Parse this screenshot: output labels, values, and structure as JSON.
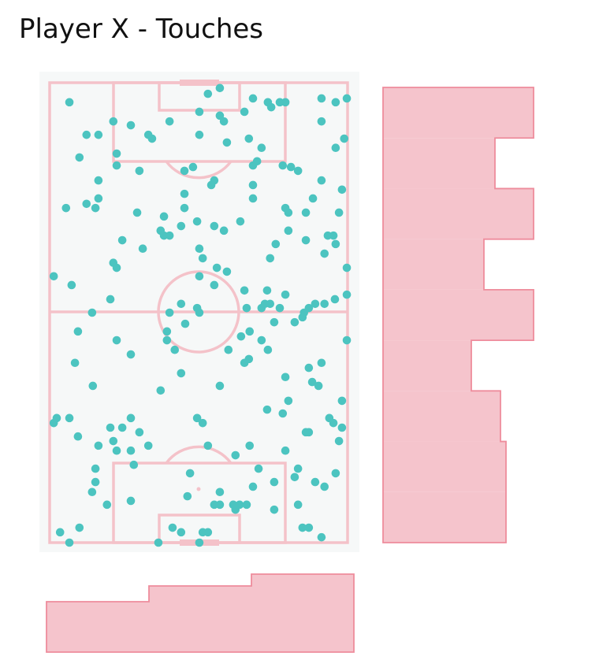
{
  "chart_data": {
    "type": "scatter",
    "title": "Player X - Touches",
    "pitch": {
      "width": 80,
      "length": 120,
      "orientation": "vertical",
      "background": "#f6f8f8",
      "line_color": "#f4c2c9"
    },
    "point_color": "#4cc4c0",
    "points_across_along": [
      [
        5.3,
        114.9
      ],
      [
        42.5,
        117.1
      ],
      [
        45.7,
        118.6
      ],
      [
        54.6,
        115.9
      ],
      [
        58.6,
        114.9
      ],
      [
        59.5,
        113.6
      ],
      [
        61.8,
        114.9
      ],
      [
        63.3,
        114.9
      ],
      [
        73.0,
        115.9
      ],
      [
        76.8,
        114.9
      ],
      [
        79.8,
        115.9
      ],
      [
        17.1,
        109.9
      ],
      [
        21.8,
        108.9
      ],
      [
        32.2,
        109.9
      ],
      [
        40.2,
        112.4
      ],
      [
        45.7,
        111.4
      ],
      [
        46.8,
        109.9
      ],
      [
        52.3,
        112.4
      ],
      [
        73.0,
        109.9
      ],
      [
        9.9,
        106.4
      ],
      [
        13.1,
        106.4
      ],
      [
        26.5,
        106.4
      ],
      [
        27.5,
        105.4
      ],
      [
        40.2,
        106.4
      ],
      [
        47.6,
        104.4
      ],
      [
        53.5,
        105.4
      ],
      [
        56.9,
        103.0
      ],
      [
        79.1,
        105.4
      ],
      [
        76.8,
        103.0
      ],
      [
        8.0,
        100.5
      ],
      [
        18.0,
        101.5
      ],
      [
        18.0,
        98.4
      ],
      [
        24.1,
        97.0
      ],
      [
        36.2,
        97.0
      ],
      [
        38.5,
        98.0
      ],
      [
        54.6,
        98.4
      ],
      [
        55.7,
        99.5
      ],
      [
        62.6,
        98.4
      ],
      [
        64.8,
        98.0
      ],
      [
        66.7,
        97.0
      ],
      [
        13.1,
        94.5
      ],
      [
        44.2,
        94.5
      ],
      [
        43.4,
        93.3
      ],
      [
        54.6,
        93.3
      ],
      [
        73.0,
        94.5
      ],
      [
        36.2,
        91.0
      ],
      [
        13.1,
        89.8
      ],
      [
        9.9,
        88.4
      ],
      [
        4.4,
        87.3
      ],
      [
        12.3,
        87.3
      ],
      [
        54.6,
        89.8
      ],
      [
        70.7,
        89.8
      ],
      [
        78.5,
        92.1
      ],
      [
        36.2,
        87.3
      ],
      [
        23.5,
        86.1
      ],
      [
        30.7,
        85.1
      ],
      [
        63.3,
        87.3
      ],
      [
        64.1,
        86.1
      ],
      [
        68.8,
        86.1
      ],
      [
        77.7,
        86.1
      ],
      [
        35.3,
        82.6
      ],
      [
        39.6,
        83.8
      ],
      [
        44.2,
        82.6
      ],
      [
        46.8,
        81.4
      ],
      [
        51.2,
        83.8
      ],
      [
        29.8,
        81.4
      ],
      [
        30.7,
        80.1
      ],
      [
        32.2,
        80.1
      ],
      [
        19.5,
        78.9
      ],
      [
        64.1,
        81.4
      ],
      [
        74.7,
        80.1
      ],
      [
        76.2,
        80.1
      ],
      [
        60.7,
        77.9
      ],
      [
        68.8,
        78.9
      ],
      [
        76.8,
        77.9
      ],
      [
        25.0,
        76.7
      ],
      [
        40.2,
        76.7
      ],
      [
        41.1,
        74.2
      ],
      [
        59.2,
        74.2
      ],
      [
        73.8,
        75.4
      ],
      [
        17.1,
        73.0
      ],
      [
        18.0,
        71.7
      ],
      [
        44.9,
        71.7
      ],
      [
        47.6,
        70.7
      ],
      [
        79.8,
        71.7
      ],
      [
        1.1,
        69.5
      ],
      [
        5.9,
        67.2
      ],
      [
        40.2,
        69.5
      ],
      [
        44.2,
        67.2
      ],
      [
        52.3,
        65.8
      ],
      [
        58.4,
        65.8
      ],
      [
        63.3,
        64.7
      ],
      [
        76.6,
        63.5
      ],
      [
        79.8,
        64.7
      ],
      [
        16.3,
        63.5
      ],
      [
        35.3,
        62.3
      ],
      [
        39.6,
        61.2
      ],
      [
        40.2,
        60.0
      ],
      [
        32.2,
        60.0
      ],
      [
        11.4,
        60.0
      ],
      [
        52.9,
        61.2
      ],
      [
        56.9,
        61.2
      ],
      [
        57.8,
        62.3
      ],
      [
        59.2,
        62.3
      ],
      [
        61.8,
        61.2
      ],
      [
        68.3,
        60.0
      ],
      [
        69.6,
        61.2
      ],
      [
        71.3,
        62.3
      ],
      [
        73.8,
        62.3
      ],
      [
        7.6,
        55.1
      ],
      [
        18.0,
        52.8
      ],
      [
        31.5,
        55.1
      ],
      [
        31.5,
        52.8
      ],
      [
        33.6,
        50.3
      ],
      [
        21.8,
        49.1
      ],
      [
        36.4,
        57.1
      ],
      [
        48.0,
        50.3
      ],
      [
        51.4,
        53.8
      ],
      [
        53.7,
        55.1
      ],
      [
        56.9,
        52.8
      ],
      [
        58.6,
        50.3
      ],
      [
        60.3,
        57.5
      ],
      [
        65.8,
        57.5
      ],
      [
        67.9,
        58.8
      ],
      [
        79.8,
        52.8
      ],
      [
        6.8,
        46.9
      ],
      [
        35.3,
        44.2
      ],
      [
        52.3,
        46.9
      ],
      [
        53.5,
        47.9
      ],
      [
        63.3,
        43.2
      ],
      [
        69.6,
        45.6
      ],
      [
        73.0,
        46.9
      ],
      [
        70.5,
        41.9
      ],
      [
        72.2,
        40.9
      ],
      [
        78.5,
        37.0
      ],
      [
        11.6,
        40.9
      ],
      [
        29.8,
        39.7
      ],
      [
        45.7,
        40.9
      ],
      [
        1.9,
        32.5
      ],
      [
        1.1,
        31.2
      ],
      [
        5.3,
        32.5
      ],
      [
        7.6,
        27.7
      ],
      [
        16.3,
        30.0
      ],
      [
        19.5,
        30.0
      ],
      [
        21.8,
        32.5
      ],
      [
        24.1,
        28.8
      ],
      [
        39.6,
        32.5
      ],
      [
        41.1,
        31.2
      ],
      [
        58.4,
        34.7
      ],
      [
        62.6,
        33.7
      ],
      [
        64.1,
        37.0
      ],
      [
        75.1,
        32.5
      ],
      [
        76.2,
        31.2
      ],
      [
        78.5,
        30.0
      ],
      [
        68.8,
        28.8
      ],
      [
        69.6,
        28.8
      ],
      [
        77.7,
        26.5
      ],
      [
        13.1,
        25.3
      ],
      [
        17.1,
        26.5
      ],
      [
        18.0,
        24.0
      ],
      [
        21.8,
        24.0
      ],
      [
        26.5,
        25.3
      ],
      [
        42.5,
        25.3
      ],
      [
        49.9,
        22.8
      ],
      [
        53.7,
        25.3
      ],
      [
        63.3,
        24.0
      ],
      [
        22.6,
        20.3
      ],
      [
        12.3,
        19.3
      ],
      [
        12.3,
        15.8
      ],
      [
        11.4,
        13.2
      ],
      [
        15.4,
        9.9
      ],
      [
        21.8,
        10.9
      ],
      [
        37.7,
        18.1
      ],
      [
        37.0,
        12.1
      ],
      [
        45.7,
        13.2
      ],
      [
        44.2,
        9.9
      ],
      [
        45.7,
        9.9
      ],
      [
        49.3,
        9.9
      ],
      [
        49.9,
        8.6
      ],
      [
        51.0,
        9.9
      ],
      [
        52.9,
        9.9
      ],
      [
        56.1,
        19.3
      ],
      [
        60.3,
        15.8
      ],
      [
        65.8,
        17.1
      ],
      [
        66.7,
        19.3
      ],
      [
        71.3,
        15.8
      ],
      [
        73.8,
        14.6
      ],
      [
        76.8,
        18.1
      ],
      [
        54.6,
        14.6
      ],
      [
        60.3,
        8.6
      ],
      [
        66.7,
        9.9
      ],
      [
        2.8,
        2.7
      ],
      [
        8.0,
        3.9
      ],
      [
        5.3,
        0.0
      ],
      [
        33.0,
        3.9
      ],
      [
        35.3,
        2.7
      ],
      [
        41.1,
        2.7
      ],
      [
        40.2,
        0.0
      ],
      [
        29.2,
        0.0
      ],
      [
        42.5,
        2.7
      ],
      [
        67.9,
        3.9
      ],
      [
        69.6,
        3.9
      ],
      [
        73.0,
        1.4
      ]
    ],
    "hist_along": {
      "bins": 9,
      "range": [
        0,
        120
      ],
      "values_bottom_to_top": [
        156,
        156,
        149,
        112,
        191,
        128,
        191,
        142,
        191
      ],
      "placement": "right",
      "fill": "#f5c4cc",
      "edge": "#ee8c9c"
    },
    "hist_across": {
      "bins": 3,
      "range": [
        0,
        80
      ],
      "values_left_to_right": [
        64,
        84,
        99
      ],
      "placement": "bottom",
      "fill": "#f5c4cc",
      "edge": "#ee8c9c"
    }
  }
}
